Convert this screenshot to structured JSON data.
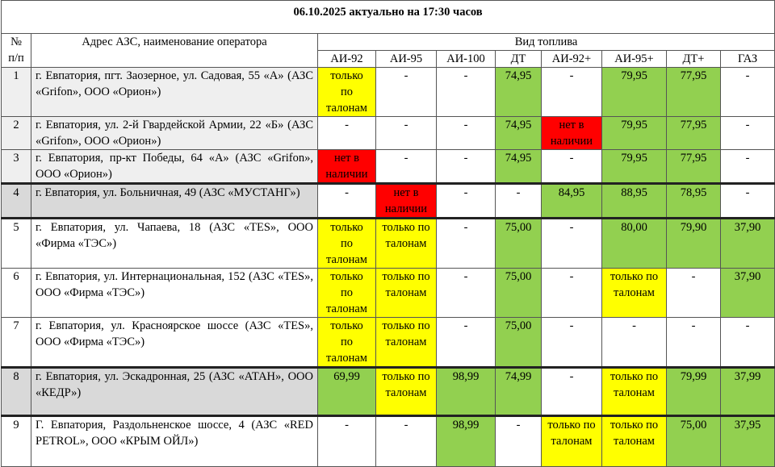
{
  "title": "06.10.2025 актуально на 17:30 часов",
  "header": {
    "num": "№ п/п",
    "address": "Адрес АЗС, наименование оператора",
    "fuel": "Вид топлива",
    "fuels": [
      "АИ-92",
      "АИ-95",
      "АИ-100",
      "ДТ",
      "АИ-92+",
      "АИ-95+",
      "ДТ+",
      "ГАЗ"
    ]
  },
  "rows": [
    {
      "num": "1",
      "shade": "#efefef",
      "address": "г. Евпатория, пгт. Заозерное, ул. Садовая, 55 «А» (АЗС «Grifon», ООО «Орион»)",
      "cells": [
        {
          "text": "только по талонам",
          "color": "#ffff00"
        },
        {
          "text": "-"
        },
        {
          "text": "-"
        },
        {
          "text": "74,95",
          "color": "#92d050"
        },
        {
          "text": "-"
        },
        {
          "text": "79,95",
          "color": "#92d050"
        },
        {
          "text": "77,95",
          "color": "#92d050"
        },
        {
          "text": "-"
        }
      ]
    },
    {
      "num": "2",
      "shade": "#efefef",
      "address": "г. Евпатория, ул. 2-й Гвардейской Армии, 22 «Б» (АЗС «Grifon», ООО «Орион»)",
      "cells": [
        {
          "text": "-"
        },
        {
          "text": "-"
        },
        {
          "text": "-"
        },
        {
          "text": "74,95",
          "color": "#92d050"
        },
        {
          "text": "нет в наличии",
          "color": "#ff0000"
        },
        {
          "text": "79,95",
          "color": "#92d050"
        },
        {
          "text": "77,95",
          "color": "#92d050"
        },
        {
          "text": "-"
        }
      ]
    },
    {
      "num": "3",
      "shade": "#efefef",
      "address": "г. Евпатория, пр-кт Победы, 64 «А» (АЗС «Grifon», ООО «Орион»)",
      "cells": [
        {
          "text": "нет в наличии",
          "color": "#ff0000"
        },
        {
          "text": "-"
        },
        {
          "text": "-"
        },
        {
          "text": "74,95",
          "color": "#92d050"
        },
        {
          "text": "-"
        },
        {
          "text": "79,95",
          "color": "#92d050"
        },
        {
          "text": "77,95",
          "color": "#92d050"
        },
        {
          "text": "-"
        }
      ]
    },
    {
      "num": "4",
      "shade": "#d9d9d9",
      "address": "г. Евпатория, ул. Больничная, 49 (АЗС «МУСТАНГ»)",
      "cells": [
        {
          "text": "-"
        },
        {
          "text": "нет в наличии",
          "color": "#ff0000"
        },
        {
          "text": "-"
        },
        {
          "text": "-"
        },
        {
          "text": "84,95",
          "color": "#92d050"
        },
        {
          "text": "88,95",
          "color": "#92d050"
        },
        {
          "text": "78,95",
          "color": "#92d050"
        },
        {
          "text": "-"
        }
      ]
    },
    {
      "num": "5",
      "shade": "#ffffff",
      "address": "г. Евпатория, ул. Чапаева, 18 (АЗС «TES», ООО «Фирма «ТЭС»)",
      "cells": [
        {
          "text": "только по талонам",
          "color": "#ffff00"
        },
        {
          "text": "только по талонам",
          "color": "#ffff00"
        },
        {
          "text": "-"
        },
        {
          "text": "75,00",
          "color": "#92d050"
        },
        {
          "text": "-"
        },
        {
          "text": "80,00",
          "color": "#92d050"
        },
        {
          "text": "79,90",
          "color": "#92d050"
        },
        {
          "text": "37,90",
          "color": "#92d050"
        }
      ]
    },
    {
      "num": "6",
      "shade": "#ffffff",
      "address": "г. Евпатория, ул. Интернациональная, 152 (АЗС «TES», ООО «Фирма «ТЭС»)",
      "cells": [
        {
          "text": "только по талонам",
          "color": "#ffff00"
        },
        {
          "text": "только по талонам",
          "color": "#ffff00"
        },
        {
          "text": "-"
        },
        {
          "text": "75,00",
          "color": "#92d050"
        },
        {
          "text": "-"
        },
        {
          "text": "только по талонам",
          "color": "#ffff00"
        },
        {
          "text": "-"
        },
        {
          "text": "37,90",
          "color": "#92d050"
        }
      ]
    },
    {
      "num": "7",
      "shade": "#ffffff",
      "address": "г. Евпатория, ул. Красноярское шоссе (АЗС «TES», ООО «Фирма «ТЭС»)",
      "cells": [
        {
          "text": "только по талонам",
          "color": "#ffff00"
        },
        {
          "text": "только по талонам",
          "color": "#ffff00"
        },
        {
          "text": "-"
        },
        {
          "text": "75,00",
          "color": "#92d050"
        },
        {
          "text": "-"
        },
        {
          "text": "-"
        },
        {
          "text": "-"
        },
        {
          "text": "-"
        }
      ]
    },
    {
      "num": "8",
      "shade": "#d9d9d9",
      "address": "г. Евпатория, ул. Эскадронная, 25 (АЗС «АТАН», ООО «КЕДР»)",
      "cells": [
        {
          "text": "69,99",
          "color": "#92d050"
        },
        {
          "text": "только по талонам",
          "color": "#ffff00"
        },
        {
          "text": "98,99",
          "color": "#92d050"
        },
        {
          "text": "74,99",
          "color": "#92d050"
        },
        {
          "text": "-"
        },
        {
          "text": "только по талонам",
          "color": "#ffff00"
        },
        {
          "text": "79,99",
          "color": "#92d050"
        },
        {
          "text": "37,99",
          "color": "#92d050"
        }
      ]
    },
    {
      "num": "9",
      "shade": "#ffffff",
      "address": "Г. Евпатория, Раздольненское шоссе, 4 (АЗС «RED PETROL», ООО «КРЫМ ОЙЛ»)",
      "cells": [
        {
          "text": "-"
        },
        {
          "text": "-"
        },
        {
          "text": "98,99",
          "color": "#92d050"
        },
        {
          "text": "-"
        },
        {
          "text": "только по талонам",
          "color": "#ffff00"
        },
        {
          "text": "только по талонам",
          "color": "#ffff00"
        },
        {
          "text": "75,00",
          "color": "#92d050"
        },
        {
          "text": "37,95",
          "color": "#92d050"
        }
      ]
    }
  ]
}
